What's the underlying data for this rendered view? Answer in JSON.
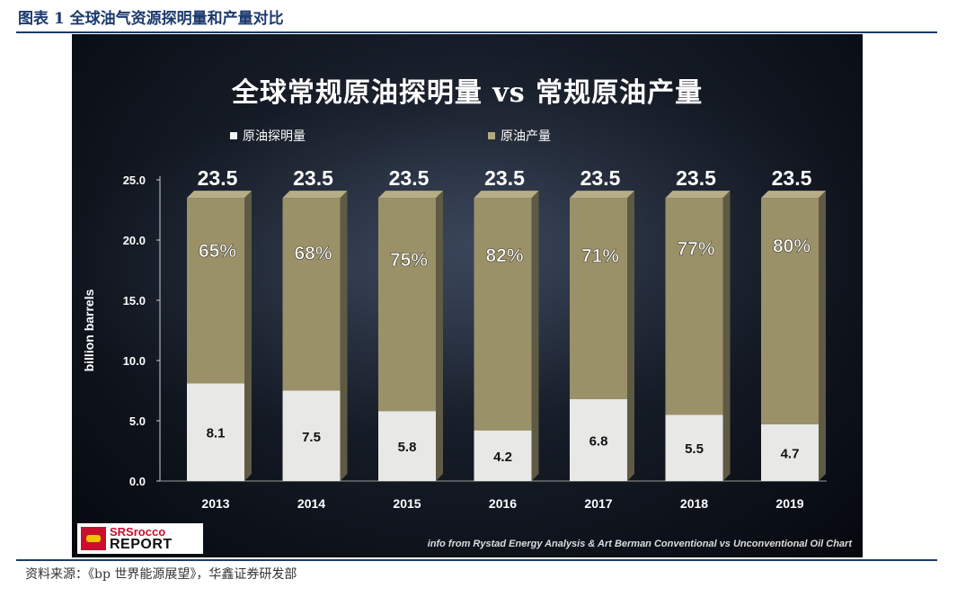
{
  "figure_title": "图表 1 全球油气资源探明量和产量对比",
  "source_note": "资料来源：《bp 世界能源展望》，华鑫证券研发部",
  "logo": {
    "line1": "SRSrocco",
    "line2": "REPORT"
  },
  "credit": "info from Rystad Energy Analysis & Art Berman Conventional vs Unconventional Oil Chart",
  "colors": {
    "discovered": "#e8e8e6",
    "production": "#9b9169",
    "production_top": "#b7ad86",
    "background": "#0a0d14"
  },
  "chart_data": {
    "type": "bar",
    "stacked": true,
    "title": "全球常规原油探明量 vs 常规原油产量",
    "ylabel": "billion barrels",
    "xlabel": "",
    "ylim": [
      0,
      25
    ],
    "yticks": [
      "0.0",
      "5.0",
      "10.0",
      "15.0",
      "20.0",
      "25.0"
    ],
    "legend_position": "top",
    "categories": [
      "2013",
      "2014",
      "2015",
      "2016",
      "2017",
      "2018",
      "2019"
    ],
    "series": [
      {
        "name": "原油探明量",
        "values": [
          8.1,
          7.5,
          5.8,
          4.2,
          6.8,
          5.5,
          4.7
        ],
        "labels": [
          "8.1",
          "7.5",
          "5.8",
          "4.2",
          "6.8",
          "5.5",
          "4.7"
        ]
      },
      {
        "name": "原油产量",
        "values": [
          15.4,
          16.0,
          17.7,
          19.3,
          16.7,
          18.0,
          18.8
        ],
        "labels": [
          "65%",
          "68%",
          "75%",
          "82%",
          "71%",
          "77%",
          "80%"
        ]
      }
    ],
    "totals": [
      "23.5",
      "23.5",
      "23.5",
      "23.5",
      "23.5",
      "23.5",
      "23.5"
    ]
  }
}
